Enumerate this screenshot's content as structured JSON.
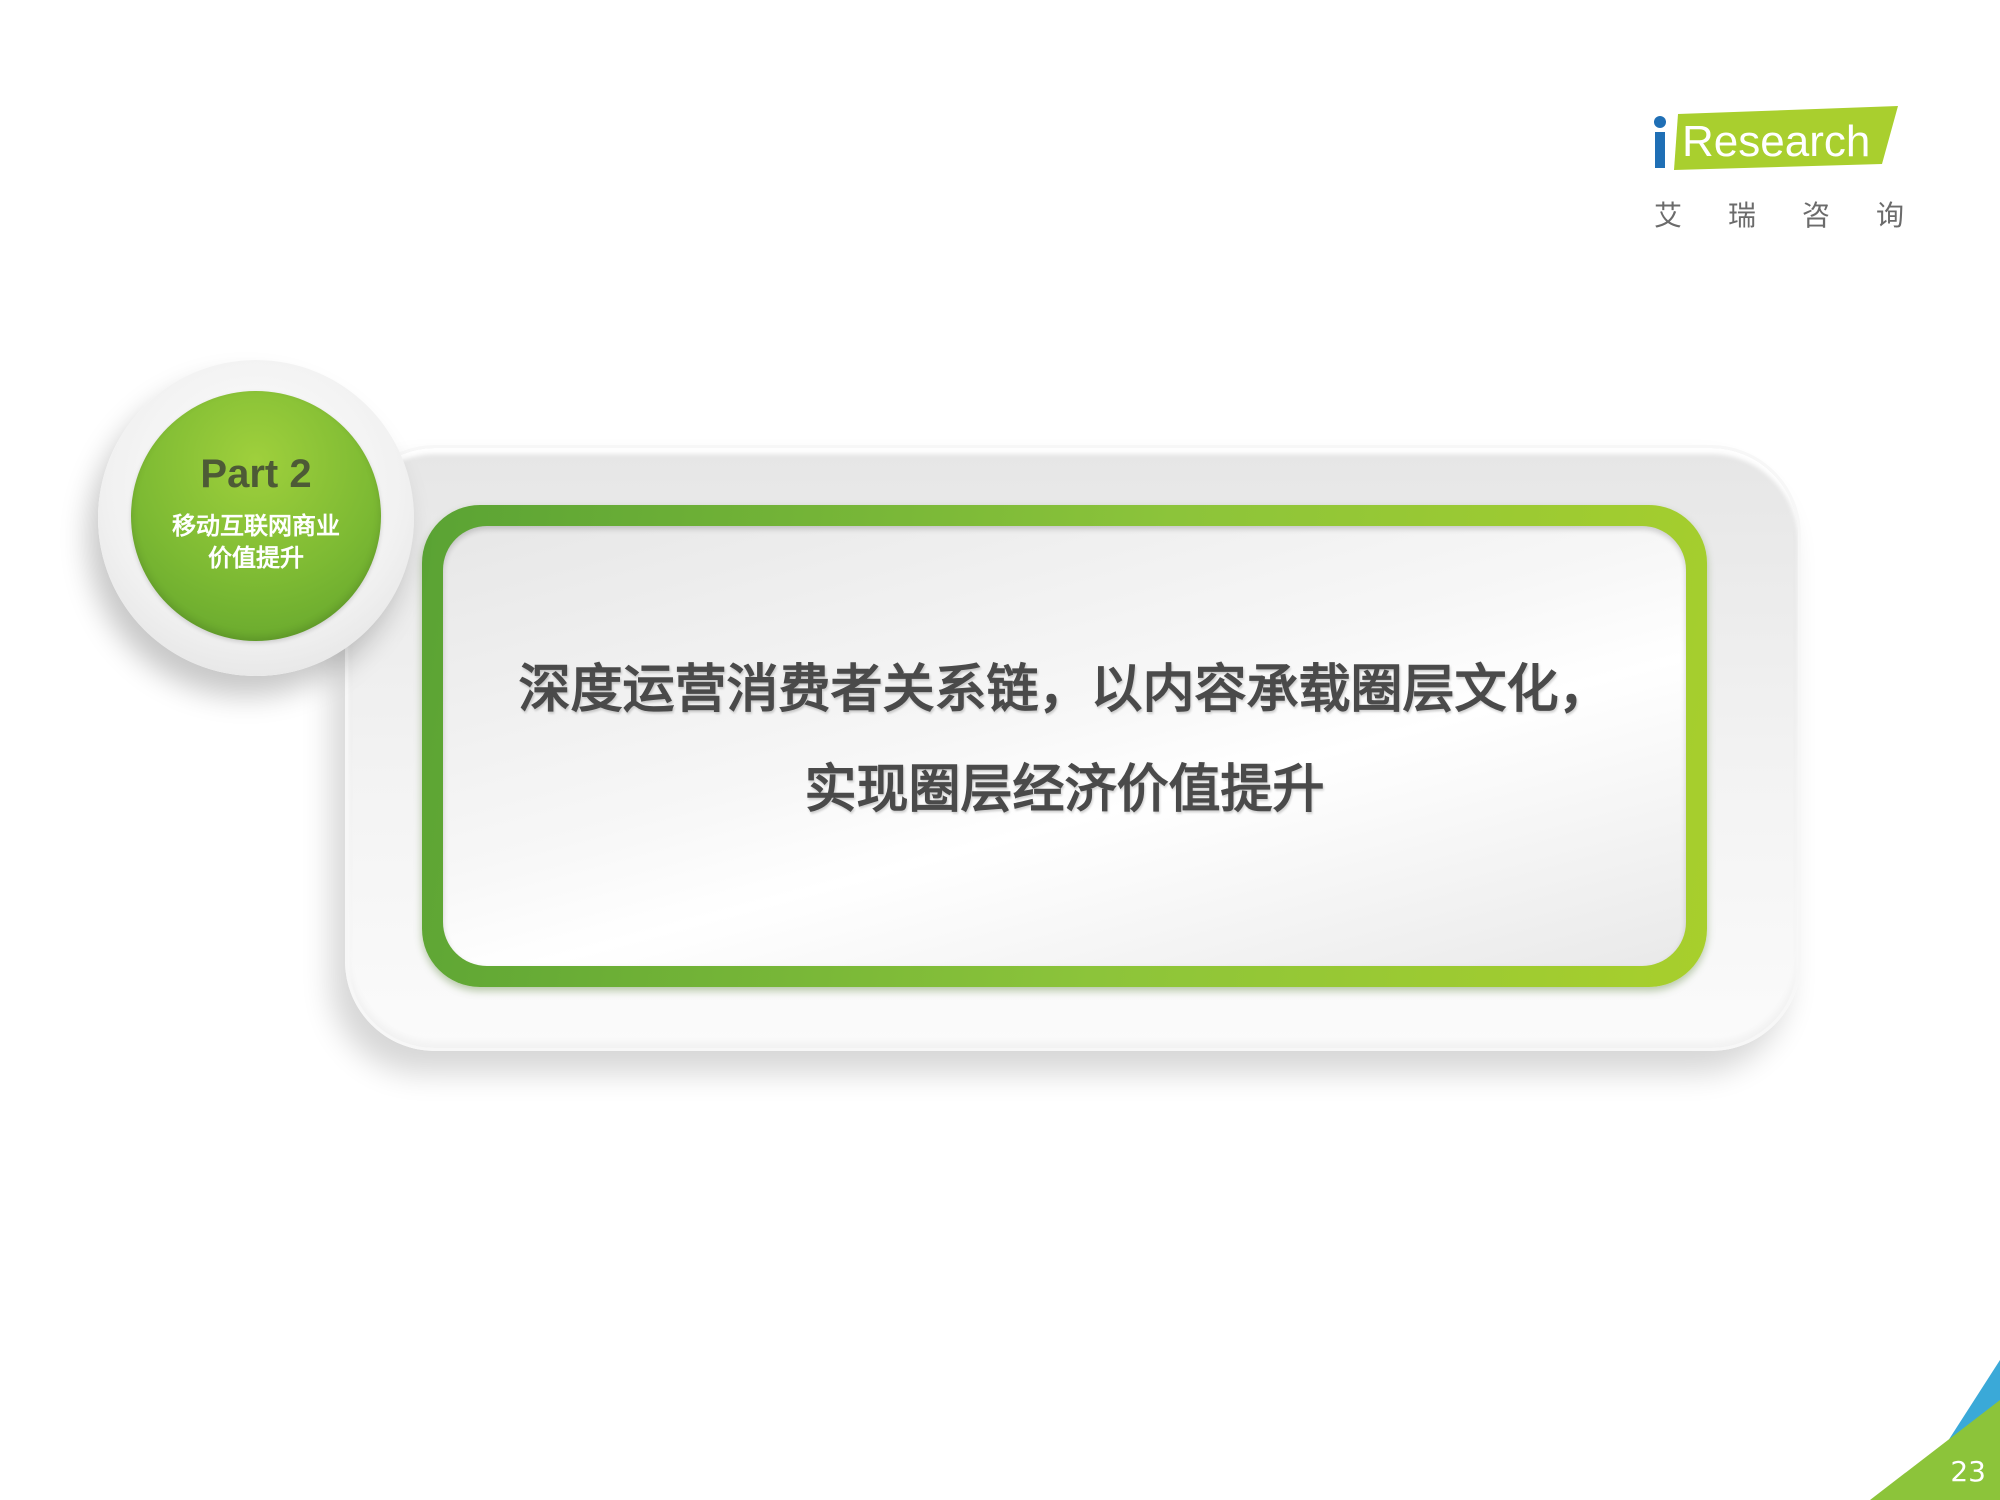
{
  "logo": {
    "brand_text": "Research",
    "i_letter": "i",
    "sub_chars": [
      "艾",
      "瑞",
      "咨",
      "询"
    ]
  },
  "section": {
    "part_title": "Part 2",
    "subtitle_lines": [
      "移动互联网商业",
      "价值提升"
    ]
  },
  "main": {
    "lines": [
      "深度运营消费者关系链，以内容承载圈层文化，",
      "实现圈层经济价值提升"
    ]
  },
  "footer": {
    "page_number": "23"
  },
  "colors": {
    "brand_green": "#8cc43a",
    "text_gray": "#4a4a4a",
    "corner_blue": "#3aa9d8",
    "corner_green": "#8cc43a"
  }
}
